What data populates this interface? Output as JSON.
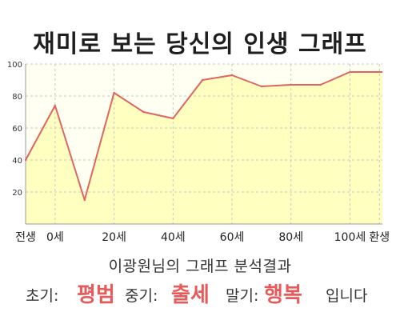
{
  "title": "재미로 보는 당신의 인생 그래프",
  "chart_data": {
    "type": "area",
    "x": [
      0,
      10,
      20,
      30,
      40,
      50,
      60,
      70,
      80,
      90,
      100,
      110
    ],
    "values": [
      40,
      74,
      15,
      82,
      70,
      66,
      90,
      93,
      86,
      87,
      87,
      95
    ],
    "xticks": [
      {
        "x": 0,
        "label": "전생"
      },
      {
        "x": 10,
        "label": "0세"
      },
      {
        "x": 30,
        "label": "20세"
      },
      {
        "x": 50,
        "label": "40세"
      },
      {
        "x": 70,
        "label": "60세"
      },
      {
        "x": 90,
        "label": "80세"
      },
      {
        "x": 110,
        "label": "100세"
      },
      {
        "x": 120,
        "label": "환생"
      }
    ],
    "yticks": [
      20,
      40,
      60,
      80,
      100
    ],
    "xlim": [
      0,
      121
    ],
    "ylim": [
      0,
      100
    ],
    "grid": true,
    "line_color": "#e06464",
    "fill_color": "#ffffc0"
  },
  "caption": "이광원님의 그래프 분석결과",
  "stages": {
    "early_label": "초기:",
    "early_value": "평범",
    "mid_label": "중기:",
    "mid_value": "출세",
    "late_label": "말기:",
    "late_value": "행복",
    "ending": "입니다"
  },
  "colors": {
    "highlight": "#e85a5a",
    "background": "#ffffff"
  }
}
